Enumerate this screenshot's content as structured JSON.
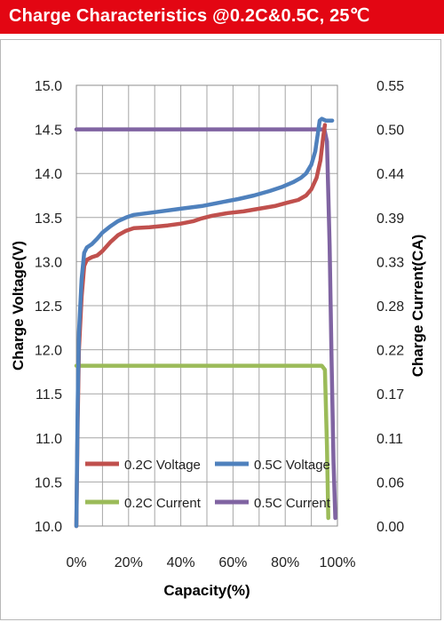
{
  "title": "Charge  Characteristics @0.2C&0.5C, 25℃",
  "colors": {
    "title_bg": "#e30613",
    "v02": "#c0504d",
    "v05": "#4f81bd",
    "i02": "#9bbb59",
    "i05": "#8064a2",
    "grid": "#a6a6a6"
  },
  "chart_data": {
    "type": "line",
    "xlabel": "Capacity(%)",
    "ylabel": "Charge Voltage(V)",
    "y2label": "Charge Current(CA)",
    "xlim": [
      0,
      100
    ],
    "ylim": [
      10.0,
      15.0
    ],
    "y2lim": [
      0.0,
      0.55
    ],
    "x_ticks": [
      0,
      10,
      20,
      30,
      40,
      50,
      60,
      70,
      80,
      90,
      100
    ],
    "x_tick_labels": [
      "0%",
      "",
      "20%",
      "",
      "40%",
      "",
      "60%",
      "",
      "80%",
      "",
      "100%"
    ],
    "y_ticks": [
      10.0,
      10.5,
      11.0,
      11.5,
      12.0,
      12.5,
      13.0,
      13.5,
      14.0,
      14.5,
      15.0
    ],
    "y_tick_labels": [
      "10.0",
      "10.5",
      "11.0",
      "11.5",
      "12.0",
      "12.5",
      "13.0",
      "13.5",
      "14.0",
      "14.5",
      "15.0"
    ],
    "y2_ticks": [
      0.0,
      0.055,
      0.11,
      0.165,
      0.22,
      0.275,
      0.33,
      0.385,
      0.44,
      0.495,
      0.55
    ],
    "y2_tick_labels": [
      "0.00",
      "0.06",
      "0.11",
      "0.17",
      "0.22",
      "0.28",
      "0.33",
      "0.39",
      "0.44",
      "0.50",
      "0.55"
    ],
    "grid": true,
    "legend_position": "bottom-inside",
    "series": [
      {
        "name": "0.2C Voltage",
        "axis": "left",
        "color": "#c0504d",
        "points": [
          [
            0,
            10.0
          ],
          [
            0.5,
            11.2
          ],
          [
            1,
            12.0
          ],
          [
            2,
            12.6
          ],
          [
            3,
            12.95
          ],
          [
            4,
            13.02
          ],
          [
            6,
            13.05
          ],
          [
            8,
            13.07
          ],
          [
            10,
            13.12
          ],
          [
            13,
            13.22
          ],
          [
            16,
            13.3
          ],
          [
            19,
            13.35
          ],
          [
            22,
            13.38
          ],
          [
            28,
            13.39
          ],
          [
            35,
            13.41
          ],
          [
            40,
            13.43
          ],
          [
            45,
            13.46
          ],
          [
            48,
            13.49
          ],
          [
            52,
            13.52
          ],
          [
            58,
            13.55
          ],
          [
            64,
            13.57
          ],
          [
            70,
            13.6
          ],
          [
            76,
            13.63
          ],
          [
            81,
            13.67
          ],
          [
            85,
            13.7
          ],
          [
            88,
            13.75
          ],
          [
            90,
            13.82
          ],
          [
            92,
            13.95
          ],
          [
            93.5,
            14.15
          ],
          [
            94.5,
            14.4
          ],
          [
            95.2,
            14.55
          ]
        ]
      },
      {
        "name": "0.5C Voltage",
        "axis": "left",
        "color": "#4f81bd",
        "points": [
          [
            0,
            10.0
          ],
          [
            0.5,
            11.4
          ],
          [
            1,
            12.2
          ],
          [
            2,
            12.8
          ],
          [
            3,
            13.1
          ],
          [
            4,
            13.16
          ],
          [
            6,
            13.2
          ],
          [
            8,
            13.26
          ],
          [
            10,
            13.33
          ],
          [
            13,
            13.4
          ],
          [
            16,
            13.46
          ],
          [
            19,
            13.5
          ],
          [
            22,
            13.53
          ],
          [
            30,
            13.56
          ],
          [
            40,
            13.6
          ],
          [
            48,
            13.63
          ],
          [
            55,
            13.67
          ],
          [
            62,
            13.71
          ],
          [
            68,
            13.75
          ],
          [
            74,
            13.8
          ],
          [
            79,
            13.85
          ],
          [
            83,
            13.9
          ],
          [
            86,
            13.95
          ],
          [
            88,
            14.0
          ],
          [
            90,
            14.1
          ],
          [
            91.5,
            14.25
          ],
          [
            92.5,
            14.45
          ],
          [
            93.2,
            14.6
          ],
          [
            94,
            14.62
          ],
          [
            95.5,
            14.6
          ],
          [
            98,
            14.6
          ]
        ]
      },
      {
        "name": "0.2C Current",
        "axis": "right",
        "color": "#9bbb59",
        "points": [
          [
            0,
            0.2
          ],
          [
            94,
            0.2
          ],
          [
            95.2,
            0.195
          ],
          [
            96,
            0.1
          ],
          [
            96.5,
            0.01
          ]
        ]
      },
      {
        "name": "0.5C Current",
        "axis": "right",
        "color": "#8064a2",
        "points": [
          [
            0,
            0.495
          ],
          [
            95,
            0.495
          ],
          [
            96,
            0.48
          ],
          [
            97,
            0.35
          ],
          [
            97.8,
            0.2
          ],
          [
            98.5,
            0.08
          ],
          [
            99.2,
            0.01
          ]
        ]
      }
    ]
  }
}
